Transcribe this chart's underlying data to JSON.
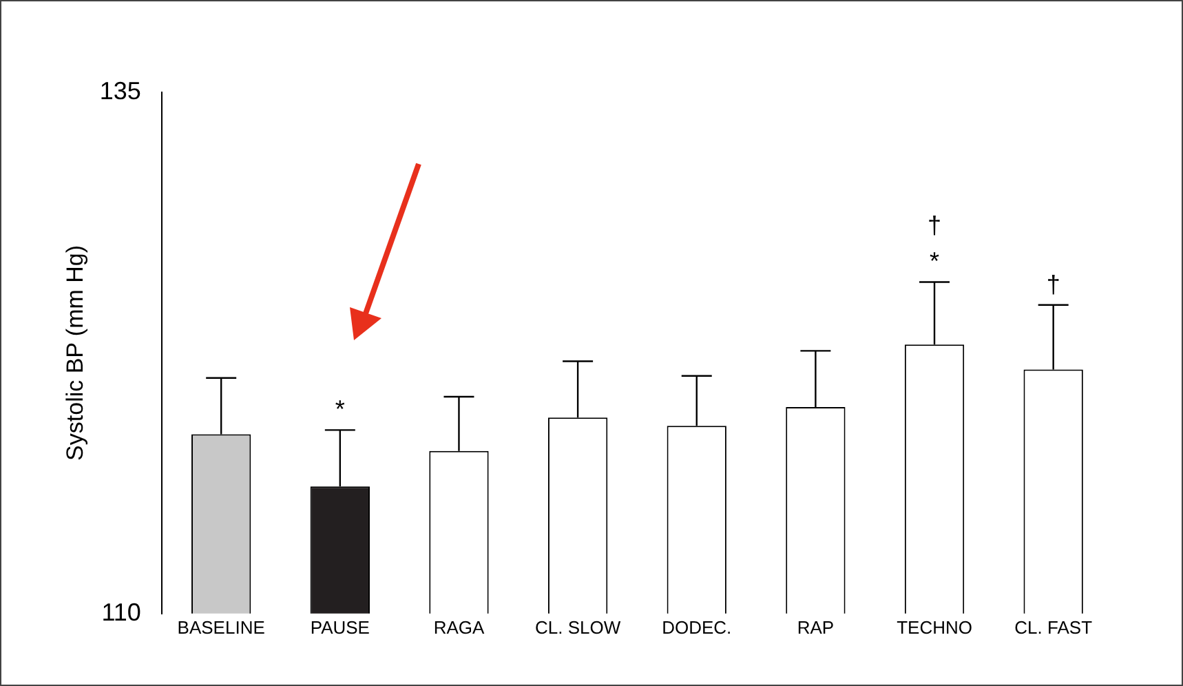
{
  "chart_data": {
    "type": "bar",
    "ylabel": "Systolic BP (mm Hg)",
    "categories": [
      "BASELINE",
      "PAUSE",
      "RAGA",
      "CL. SLOW",
      "DODEC.",
      "RAP",
      "TECHNO",
      "CL. FAST"
    ],
    "values": [
      118.6,
      116.1,
      117.8,
      119.4,
      119.0,
      119.9,
      122.9,
      121.7
    ],
    "colors": [
      "#c8c8c8",
      "#231f20",
      "#ffffff",
      "#ffffff",
      "#ffffff",
      "#ffffff",
      "#ffffff",
      "#ffffff"
    ],
    "errors": [
      [
        118.6,
        121.3
      ],
      [
        116.1,
        118.8
      ],
      [
        117.8,
        120.4
      ],
      [
        119.4,
        122.1
      ],
      [
        119.0,
        121.4
      ],
      [
        119.9,
        122.6
      ],
      [
        122.9,
        125.9
      ],
      [
        121.7,
        124.8
      ]
    ],
    "ylim": [
      110,
      135
    ],
    "yticks": [
      110,
      135
    ],
    "grid": false,
    "legend": false,
    "annotations": [
      {
        "text": "*",
        "x": "PAUSE",
        "y": 118.8
      },
      {
        "text": "*",
        "x": "TECHNO",
        "y": 125.9
      },
      {
        "text": "†",
        "x": "TECHNO",
        "y": 125.9
      },
      {
        "text": "†",
        "x": "CL. FAST",
        "y": 124.8
      }
    ]
  }
}
